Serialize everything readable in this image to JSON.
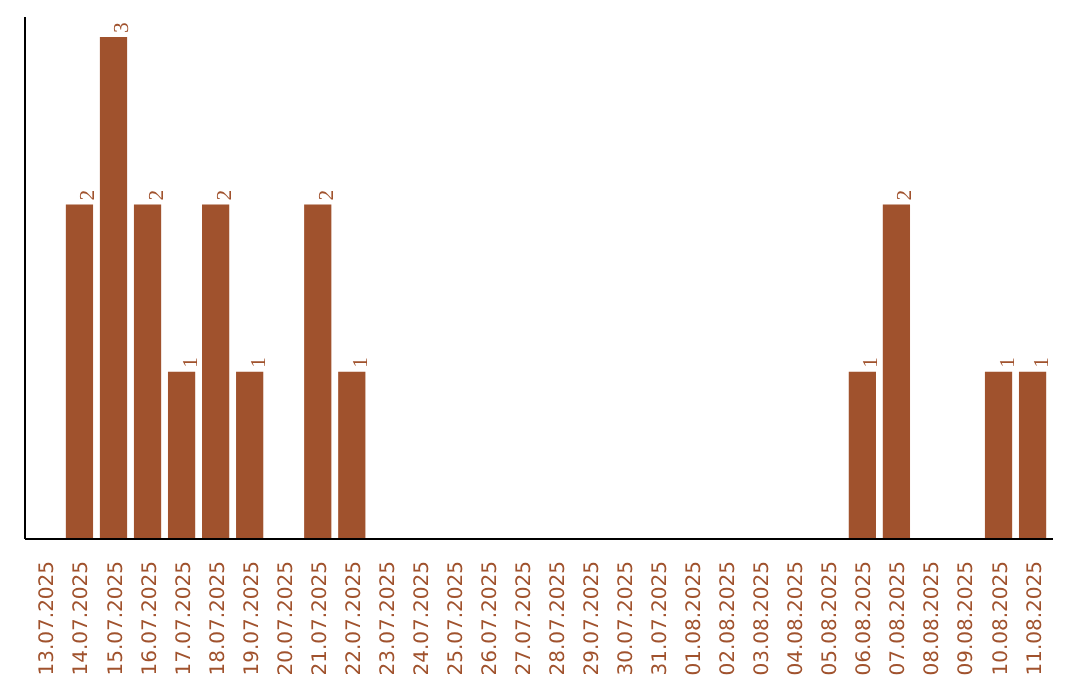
{
  "chart_data": {
    "type": "bar",
    "categories": [
      "13.07.2025",
      "14.07.2025",
      "15.07.2025",
      "16.07.2025",
      "17.07.2025",
      "18.07.2025",
      "19.07.2025",
      "20.07.2025",
      "21.07.2025",
      "22.07.2025",
      "23.07.2025",
      "24.07.2025",
      "25.07.2025",
      "26.07.2025",
      "27.07.2025",
      "28.07.2025",
      "29.07.2025",
      "30.07.2025",
      "31.07.2025",
      "01.08.2025",
      "02.08.2025",
      "03.08.2025",
      "04.08.2025",
      "05.08.2025",
      "06.08.2025",
      "07.08.2025",
      "08.08.2025",
      "09.08.2025",
      "10.08.2025",
      "11.08.2025"
    ],
    "values": [
      0,
      2,
      3,
      2,
      1,
      2,
      1,
      0,
      2,
      1,
      0,
      0,
      0,
      0,
      0,
      0,
      0,
      0,
      0,
      0,
      0,
      0,
      0,
      0,
      1,
      2,
      0,
      0,
      1,
      1
    ],
    "value_labels": [
      null,
      "2",
      "3",
      "2",
      "1",
      "2",
      "1",
      null,
      "2",
      "1",
      null,
      null,
      null,
      null,
      null,
      null,
      null,
      null,
      null,
      null,
      null,
      null,
      null,
      null,
      "1",
      "2",
      null,
      null,
      "1",
      "1"
    ],
    "color": "#a0522d",
    "ylim": [
      0,
      3.12
    ],
    "tick_labels": "x",
    "grid": false
  }
}
